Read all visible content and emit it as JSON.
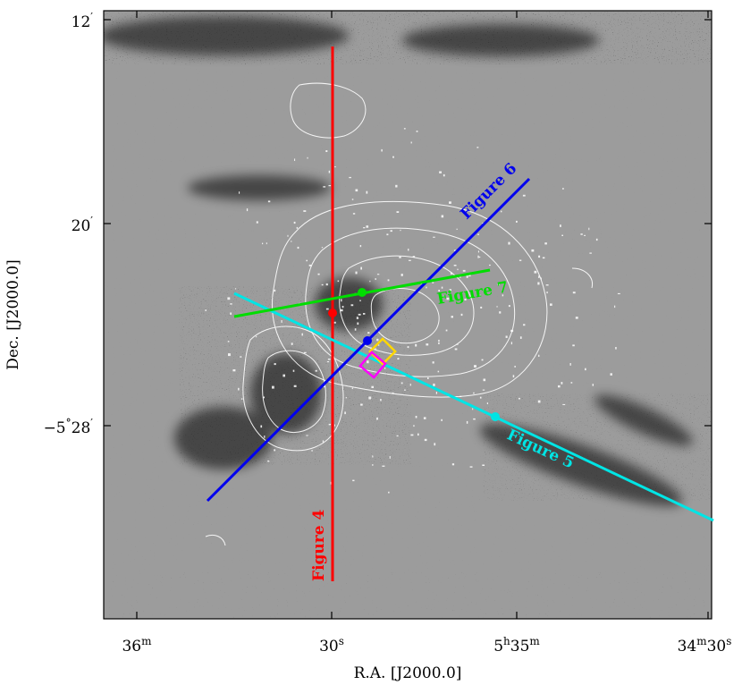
{
  "axes": {
    "xlabel": "R.A. [J2000.0]",
    "ylabel": "Dec. [J2000.0]",
    "x_ticks": [
      {
        "main": "36",
        "sup": "m"
      },
      {
        "main": "30",
        "sup": "s"
      },
      {
        "main": "5",
        "sup": "h",
        "main2": "35",
        "sup2": "m"
      },
      {
        "main": "34",
        "sup": "m",
        "main2": "30",
        "sup2": "s"
      }
    ],
    "y_ticks": [
      {
        "main": "12",
        "sup": "′"
      },
      {
        "main": "20",
        "sup": "′"
      },
      {
        "main": "−5",
        "sup": "°",
        "main2": "28",
        "sup2": "′"
      }
    ]
  },
  "cuts": [
    {
      "label": "Figure 4",
      "color": "#ff0000"
    },
    {
      "label": "Figure 5",
      "color": "#00e5e5"
    },
    {
      "label": "Figure 6",
      "color": "#0000ee"
    },
    {
      "label": "Figure 7",
      "color": "#00dd00"
    }
  ],
  "boxes": [
    {
      "color": "#ffd700"
    },
    {
      "color": "#ff00ff"
    }
  ],
  "colors": {
    "background": "#9c9c9c",
    "contours": "#ffffff",
    "emission": "#000000"
  }
}
